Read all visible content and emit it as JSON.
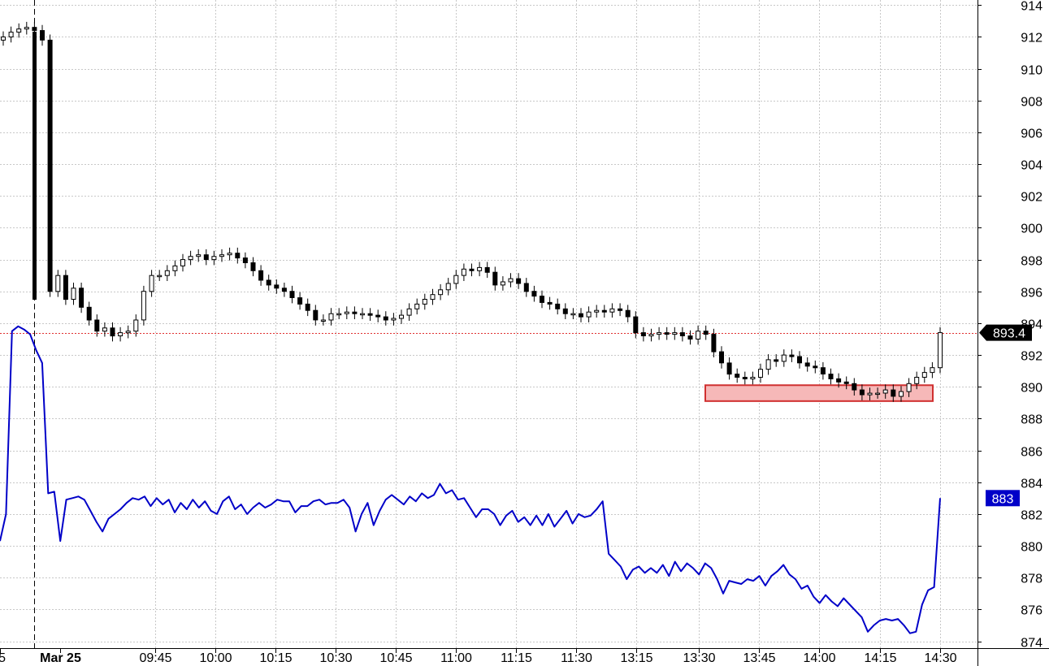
{
  "chart_data": {
    "type": "line",
    "title": "",
    "xlabel": "",
    "ylabel": "",
    "ylim": [
      873.5,
      914.5
    ],
    "grid": true,
    "y_ticks": [
      914,
      912,
      910,
      908,
      906,
      904,
      902,
      900,
      898,
      896,
      894,
      892,
      890,
      888,
      886,
      884,
      882,
      880,
      878,
      876,
      874
    ],
    "x_tick_labels": [
      "5",
      "Mar 25",
      "09:45",
      "10:00",
      "10:15",
      "10:30",
      "10:45",
      "11:00",
      "11:15",
      "11:30",
      "13:15",
      "13:30",
      "13:45",
      "14:00",
      "14:15",
      "14:30"
    ],
    "session_break_label": "Mar 25",
    "series": [
      {
        "kind": "candlestick",
        "name": "",
        "last_value_label": "893.4",
        "close_series": [
          912.0,
          912.3,
          912.5,
          912.6,
          912.4,
          911.8,
          896.0,
          897.0,
          895.5,
          896.2,
          895.0,
          894.2,
          893.5,
          893.7,
          893.2,
          893.4,
          893.5,
          894.2,
          896.0,
          897.0,
          897.0,
          897.3,
          897.6,
          898.0,
          898.2,
          898.3,
          898.0,
          898.2,
          898.3,
          898.4,
          898.1,
          897.8,
          897.3,
          896.7,
          896.4,
          896.2,
          896.0,
          895.6,
          895.2,
          894.8,
          894.2,
          894.2,
          894.6,
          894.6,
          894.7,
          894.6,
          894.6,
          894.5,
          894.4,
          894.2,
          894.3,
          894.5,
          894.9,
          895.2,
          895.5,
          895.8,
          896.1,
          896.5,
          897.0,
          897.4,
          897.3,
          897.5,
          897.2,
          896.4,
          896.6,
          896.8,
          896.5,
          896.0,
          895.7,
          895.3,
          895.2,
          894.9,
          894.6,
          894.6,
          894.4,
          894.7,
          894.8,
          894.7,
          894.9,
          894.8,
          894.4,
          893.4,
          893.2,
          893.3,
          893.4,
          893.3,
          893.4,
          893.2,
          893.0,
          893.5,
          893.3,
          892.2,
          891.5,
          890.8,
          890.6,
          890.5,
          890.6,
          891.1,
          891.7,
          891.6,
          892.0,
          891.9,
          891.5,
          891.3,
          891.2,
          890.8,
          890.5,
          890.3,
          890.2,
          889.8,
          889.5,
          889.6,
          889.6,
          889.8,
          889.4,
          889.7,
          890.2,
          890.6,
          890.9,
          891.2,
          893.4
        ]
      },
      {
        "kind": "line",
        "name": "",
        "color": "#0000c8",
        "last_value_label": "883",
        "values": [
          880.3,
          882.0,
          893.5,
          893.8,
          893.6,
          893.3,
          892.3,
          891.5,
          883.3,
          883.4,
          880.3,
          882.9,
          883.0,
          883.1,
          882.9,
          882.2,
          881.5,
          880.9,
          881.7,
          882.0,
          882.3,
          882.7,
          883.0,
          882.9,
          883.1,
          882.5,
          883.0,
          882.6,
          882.9,
          882.1,
          882.7,
          882.3,
          882.9,
          882.4,
          882.8,
          882.2,
          882.0,
          882.8,
          883.1,
          882.3,
          882.6,
          882.0,
          882.4,
          882.7,
          882.4,
          882.6,
          882.9,
          882.8,
          882.8,
          882.1,
          882.5,
          882.5,
          882.8,
          882.9,
          882.6,
          882.7,
          882.7,
          882.9,
          882.4,
          880.9,
          882.0,
          882.7,
          881.3,
          882.2,
          882.9,
          883.2,
          882.9,
          882.6,
          883.1,
          882.8,
          883.3,
          883.0,
          883.2,
          883.9,
          883.3,
          883.5,
          882.9,
          883.0,
          882.4,
          881.8,
          882.3,
          882.3,
          882.0,
          881.3,
          881.9,
          882.2,
          881.5,
          881.8,
          881.3,
          881.9,
          881.3,
          882.0,
          881.2,
          881.7,
          882.2,
          881.4,
          882.0,
          881.8,
          881.9,
          882.3,
          882.8,
          879.5,
          879.1,
          878.7,
          877.9,
          878.5,
          878.7,
          878.3,
          878.6,
          878.3,
          878.8,
          878.1,
          879.0,
          878.4,
          878.9,
          878.6,
          878.2,
          878.9,
          878.6,
          877.9,
          877.0,
          877.8,
          877.7,
          877.6,
          877.9,
          877.8,
          878.1,
          877.5,
          878.1,
          878.4,
          878.8,
          878.2,
          877.9,
          877.3,
          877.5,
          876.8,
          876.4,
          876.9,
          876.5,
          876.2,
          876.7,
          876.3,
          875.9,
          875.5,
          874.6,
          875.0,
          875.3,
          875.4,
          875.3,
          875.4,
          875.0,
          874.5,
          874.6,
          876.3,
          877.2,
          877.4,
          883.0
        ]
      }
    ],
    "annotations": [
      {
        "type": "reference_line",
        "value": 893.4,
        "color": "#e03030",
        "style": "dotted"
      },
      {
        "type": "highlight_box",
        "y_range": [
          889.1,
          890.1
        ],
        "fill": "#f6b8b8",
        "stroke": "#d03030"
      }
    ]
  }
}
